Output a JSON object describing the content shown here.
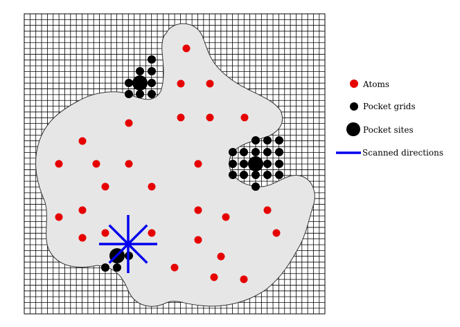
{
  "diagram": {
    "colors": {
      "atom": "#e60000",
      "pocket_grid": "#000000",
      "pocket_site": "#000000",
      "scan": "#0000ee",
      "molecule": "#e6e6e6",
      "grid_line": "#000000"
    },
    "legend": [
      {
        "key": "atom",
        "label": "Atoms",
        "marker": "small-red-dot"
      },
      {
        "key": "pocket_grid",
        "label": "Pocket grids",
        "marker": "small-black-dot"
      },
      {
        "key": "pocket_site",
        "label": "Pocket sites",
        "marker": "large-black-dot"
      },
      {
        "key": "scan",
        "label": "Scanned directions",
        "marker": "blue-line"
      }
    ],
    "atom_count": 27,
    "pocket_site_count": 3,
    "scanned_direction_count": 8
  }
}
